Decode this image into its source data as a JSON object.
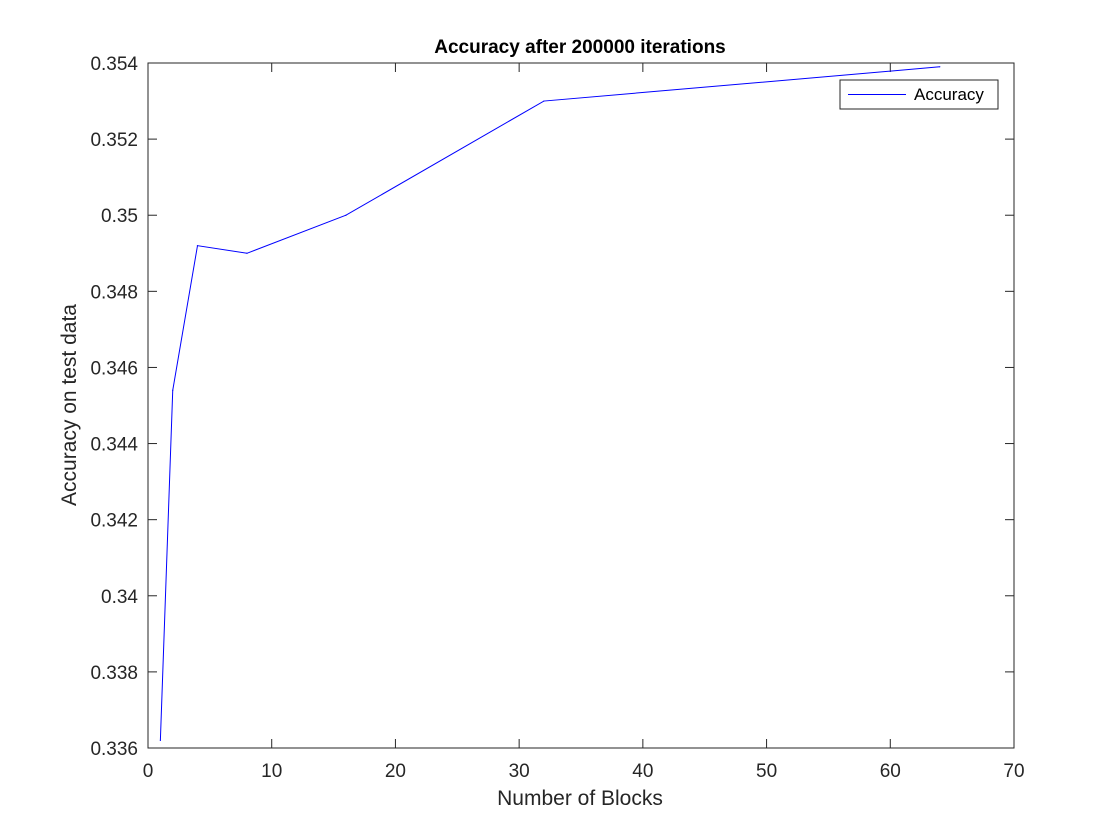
{
  "chart_data": {
    "type": "line",
    "title": "Accuracy after 200000 iterations",
    "xlabel": "Number of Blocks",
    "ylabel": "Accuracy on test data",
    "xlim": [
      0,
      70
    ],
    "ylim": [
      0.336,
      0.354
    ],
    "x_ticks": [
      0,
      10,
      20,
      30,
      40,
      50,
      60,
      70
    ],
    "x_tick_labels": [
      "0",
      "10",
      "20",
      "30",
      "40",
      "50",
      "60",
      "70"
    ],
    "y_ticks": [
      0.336,
      0.338,
      0.34,
      0.342,
      0.344,
      0.346,
      0.348,
      0.35,
      0.352,
      0.354
    ],
    "y_tick_labels": [
      "0.336",
      "0.338",
      "0.34",
      "0.342",
      "0.344",
      "0.346",
      "0.348",
      "0.35",
      "0.352",
      "0.354"
    ],
    "grid": false,
    "legend_position": "top-right",
    "series": [
      {
        "name": "Accuracy",
        "color": "#0000ff",
        "x": [
          1,
          2,
          4,
          8,
          16,
          32,
          64
        ],
        "y": [
          0.3362,
          0.3454,
          0.3492,
          0.349,
          0.35,
          0.353,
          0.3539
        ]
      }
    ]
  }
}
